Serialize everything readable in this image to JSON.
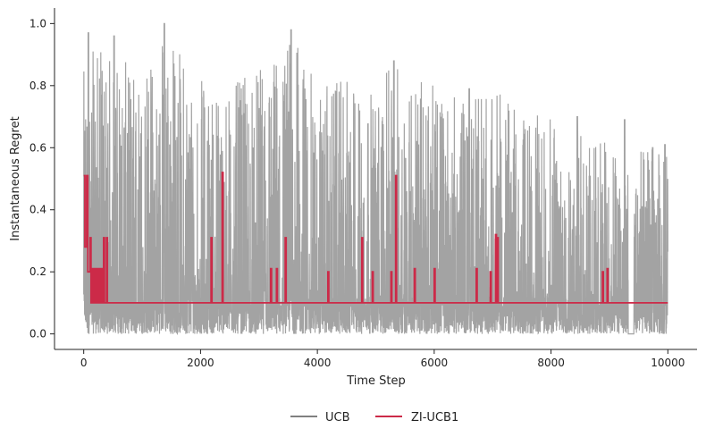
{
  "chart_data": {
    "type": "line",
    "title": "",
    "xlabel": "Time Step",
    "ylabel": "Instantaneous Regret",
    "xlim": [
      -500,
      10500
    ],
    "ylim": [
      -0.05,
      1.05
    ],
    "x_ticks": [
      0,
      2000,
      4000,
      6000,
      8000,
      10000
    ],
    "x_tick_labels": [
      "0",
      "2000",
      "4000",
      "6000",
      "8000",
      "10000"
    ],
    "y_ticks": [
      0.0,
      0.2,
      0.4,
      0.6,
      0.8,
      1.0
    ],
    "y_tick_labels": [
      "0.0",
      "0.2",
      "0.4",
      "0.6",
      "0.8",
      "1.0"
    ],
    "grid": false,
    "legend_position": "bottom-center",
    "series": [
      {
        "name": "UCB",
        "color": "#a3a3a3",
        "legend_color": "#808080",
        "x_range": [
          0,
          10000
        ],
        "baseline": 0.0,
        "envelope": [
          {
            "x": 0,
            "y": 0.85
          },
          {
            "x": 200,
            "y": 0.93
          },
          {
            "x": 500,
            "y": 0.9
          },
          {
            "x": 1000,
            "y": 0.85
          },
          {
            "x": 1380,
            "y": 1.0
          },
          {
            "x": 2000,
            "y": 0.83
          },
          {
            "x": 2500,
            "y": 0.8
          },
          {
            "x": 3000,
            "y": 0.85
          },
          {
            "x": 3550,
            "y": 0.98
          },
          {
            "x": 4000,
            "y": 0.8
          },
          {
            "x": 4500,
            "y": 0.82
          },
          {
            "x": 5000,
            "y": 0.78
          },
          {
            "x": 5300,
            "y": 0.88
          },
          {
            "x": 6000,
            "y": 0.8
          },
          {
            "x": 6500,
            "y": 0.75
          },
          {
            "x": 7000,
            "y": 0.8
          },
          {
            "x": 7500,
            "y": 0.72
          },
          {
            "x": 8000,
            "y": 0.7
          },
          {
            "x": 8500,
            "y": 0.65
          },
          {
            "x": 9000,
            "y": 0.62
          },
          {
            "x": 9500,
            "y": 0.6
          },
          {
            "x": 10000,
            "y": 0.6
          }
        ],
        "peaks": [
          {
            "x": 80,
            "y": 0.97
          },
          {
            "x": 520,
            "y": 0.96
          },
          {
            "x": 1380,
            "y": 1.0
          },
          {
            "x": 3550,
            "y": 0.98
          },
          {
            "x": 5310,
            "y": 0.88
          },
          {
            "x": 6600,
            "y": 0.79
          },
          {
            "x": 8450,
            "y": 0.7
          },
          {
            "x": 9260,
            "y": 0.69
          },
          {
            "x": 9740,
            "y": 0.6
          },
          {
            "x": 9950,
            "y": 0.61
          }
        ]
      },
      {
        "name": "ZI-UCB1",
        "color": "#cc2a48",
        "baseline": 0.1,
        "x_range": [
          0,
          10000
        ],
        "initial": [
          {
            "x": 0,
            "y": 0.51
          },
          {
            "x": 20,
            "y": 0.28
          },
          {
            "x": 50,
            "y": 0.51
          },
          {
            "x": 70,
            "y": 0.2
          },
          {
            "x": 100,
            "y": 0.2
          },
          {
            "x": 110,
            "y": 0.31
          },
          {
            "x": 125,
            "y": 0.1
          }
        ],
        "spikes": [
          {
            "x": 150,
            "y": 0.21
          },
          {
            "x": 190,
            "y": 0.21
          },
          {
            "x": 230,
            "y": 0.21
          },
          {
            "x": 270,
            "y": 0.21
          },
          {
            "x": 300,
            "y": 0.21
          },
          {
            "x": 340,
            "y": 0.31
          },
          {
            "x": 390,
            "y": 0.31
          },
          {
            "x": 2180,
            "y": 0.31
          },
          {
            "x": 2370,
            "y": 0.52
          },
          {
            "x": 3200,
            "y": 0.21
          },
          {
            "x": 3300,
            "y": 0.21
          },
          {
            "x": 3450,
            "y": 0.31
          },
          {
            "x": 4180,
            "y": 0.2
          },
          {
            "x": 4760,
            "y": 0.31
          },
          {
            "x": 4940,
            "y": 0.2
          },
          {
            "x": 5260,
            "y": 0.2
          },
          {
            "x": 5340,
            "y": 0.51
          },
          {
            "x": 5660,
            "y": 0.21
          },
          {
            "x": 6000,
            "y": 0.21
          },
          {
            "x": 6720,
            "y": 0.21
          },
          {
            "x": 6960,
            "y": 0.2
          },
          {
            "x": 7050,
            "y": 0.32
          },
          {
            "x": 7080,
            "y": 0.31
          },
          {
            "x": 8880,
            "y": 0.2
          },
          {
            "x": 8960,
            "y": 0.21
          }
        ]
      }
    ]
  }
}
